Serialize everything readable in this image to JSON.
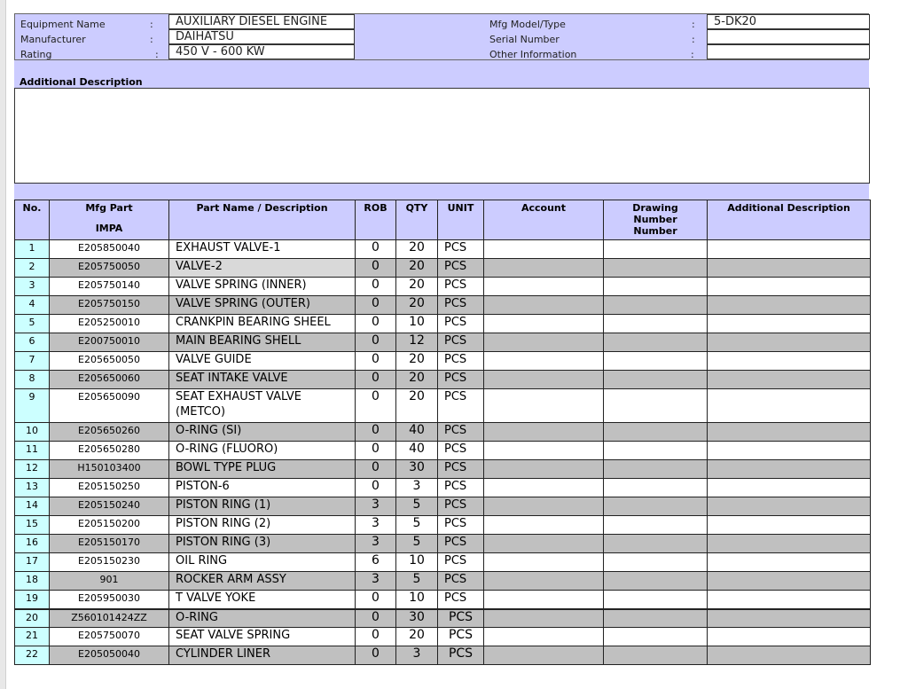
{
  "header": {
    "equipment_name_label": "Equipment Name",
    "equipment_name": "AUXILIARY DIESEL ENGINE",
    "manufacturer_label": "Manufacturer",
    "manufacturer": "DAIHATSU",
    "rating_label": "Rating",
    "rating": "450 V - 600 KW",
    "model_label": "Mfg Model/Type",
    "model": "5-DK20",
    "serial_label": "Serial Number",
    "serial": "",
    "other_label": "Other Information",
    "other": "",
    "colon": ":"
  },
  "additional_description": {
    "label": "Additional Description",
    "value": ""
  },
  "columns": {
    "no": "No.",
    "mfg": "Mfg Part",
    "impa": "IMPA",
    "part": "Part Name / Description",
    "rob": "ROB",
    "qty": "QTY",
    "unit": "UNIT",
    "account": "Account",
    "drawing": "Drawing Number Number",
    "addl": "Additional Description"
  },
  "rows": [
    {
      "no": "1",
      "mfg": "E205850040",
      "part": "EXHAUST VALVE-1",
      "rob": "0",
      "qty": "20",
      "unit": "PCS"
    },
    {
      "no": "2",
      "mfg": "E205750050",
      "part": "VALVE-2",
      "rob": "0",
      "qty": "20",
      "unit": "PCS"
    },
    {
      "no": "3",
      "mfg": "E205750140",
      "part": "VALVE SPRING (INNER)",
      "rob": "0",
      "qty": "20",
      "unit": "PCS"
    },
    {
      "no": "4",
      "mfg": "E205750150",
      "part": "VALVE SPRING (OUTER)",
      "rob": "0",
      "qty": "20",
      "unit": "PCS"
    },
    {
      "no": "5",
      "mfg": "E205250010",
      "part": "CRANKPIN BEARING SHEEL",
      "rob": "0",
      "qty": "10",
      "unit": "PCS"
    },
    {
      "no": "6",
      "mfg": "E200750010",
      "part": "MAIN BEARING SHELL",
      "rob": "0",
      "qty": "12",
      "unit": "PCS"
    },
    {
      "no": "7",
      "mfg": "E205650050",
      "part": "VALVE GUIDE",
      "rob": "0",
      "qty": "20",
      "unit": "PCS"
    },
    {
      "no": "8",
      "mfg": "E205650060",
      "part": "SEAT INTAKE VALVE",
      "rob": "0",
      "qty": "20",
      "unit": "PCS"
    },
    {
      "no": "9",
      "mfg": "E205650090",
      "part": "SEAT EXHAUST VALVE (METCO)",
      "rob": "0",
      "qty": "20",
      "unit": "PCS"
    },
    {
      "no": "10",
      "mfg": "E205650260",
      "part": "O-RING (SI)",
      "rob": "0",
      "qty": "40",
      "unit": "PCS"
    },
    {
      "no": "11",
      "mfg": "E205650280",
      "part": "O-RING (FLUORO)",
      "rob": "0",
      "qty": "40",
      "unit": "PCS"
    },
    {
      "no": "12",
      "mfg": "H150103400",
      "part": "BOWL TYPE PLUG",
      "rob": "0",
      "qty": "30",
      "unit": "PCS"
    },
    {
      "no": "13",
      "mfg": "E205150250",
      "part": "PISTON-6",
      "rob": "0",
      "qty": "3",
      "unit": "PCS"
    },
    {
      "no": "14",
      "mfg": "E205150240",
      "part": "PISTON RING (1)",
      "rob": "3",
      "qty": "5",
      "unit": "PCS"
    },
    {
      "no": "15",
      "mfg": "E205150200",
      "part": "PISTON RING (2)",
      "rob": "3",
      "qty": "5",
      "unit": "PCS"
    },
    {
      "no": "16",
      "mfg": "E205150170",
      "part": "PISTON RING (3)",
      "rob": "3",
      "qty": "5",
      "unit": "PCS"
    },
    {
      "no": "17",
      "mfg": "E205150230",
      "part": "OIL RING",
      "rob": "6",
      "qty": "10",
      "unit": "PCS"
    },
    {
      "no": "18",
      "mfg": "901",
      "part": "ROCKER ARM ASSY",
      "rob": "3",
      "qty": "5",
      "unit": "PCS"
    },
    {
      "no": "19",
      "mfg": "E205950030",
      "part": "T VALVE YOKE",
      "rob": "0",
      "qty": "10",
      "unit": "PCS"
    },
    {
      "no": "20",
      "mfg": "Z560101424ZZ",
      "part": "O-RING",
      "rob": "0",
      "qty": "30",
      "unit": "PCS"
    },
    {
      "no": "21",
      "mfg": "E205750070",
      "part": "SEAT VALVE SPRING",
      "rob": "0",
      "qty": "20",
      "unit": "PCS"
    },
    {
      "no": "22",
      "mfg": "E205050040",
      "part": "CYLINDER LINER",
      "rob": "0",
      "qty": "3",
      "unit": "PCS"
    }
  ]
}
